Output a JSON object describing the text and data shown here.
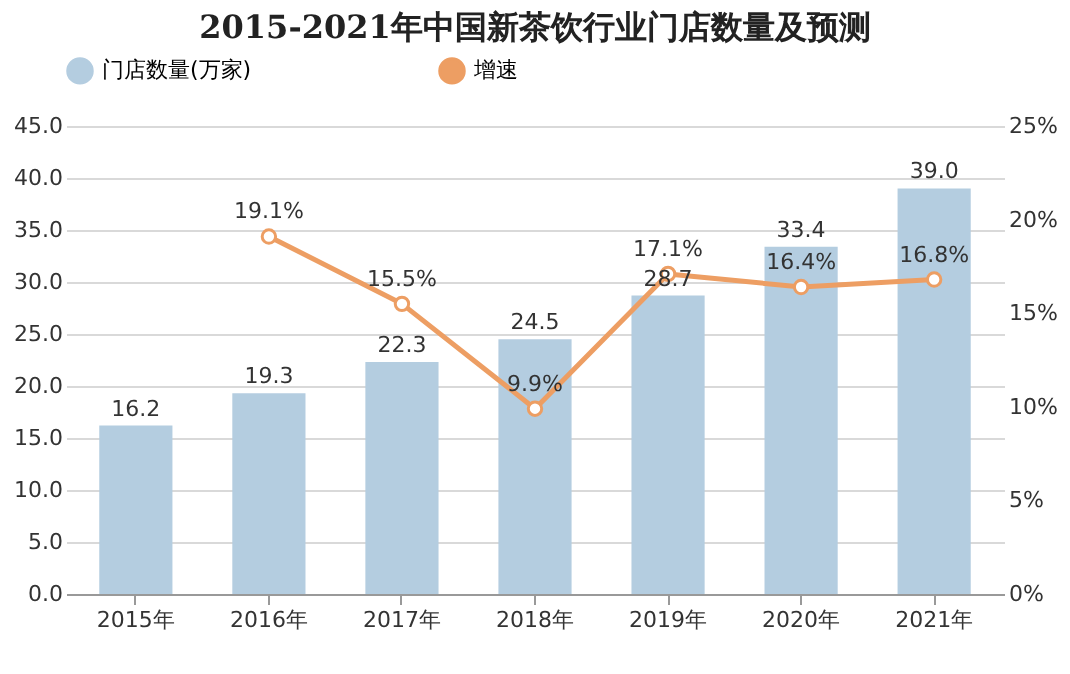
{
  "chart_data": {
    "type": "bar",
    "title": "2015-2021年中国新茶饮行业门店数量及预测",
    "categories": [
      "2015年",
      "2016年",
      "2017年",
      "2018年",
      "2019年",
      "2020年",
      "2021年"
    ],
    "series": [
      {
        "name": "门店数量(万家)",
        "color": "#b4cde0",
        "values": [
          16.2,
          19.3,
          22.3,
          24.5,
          28.7,
          33.4,
          39.0
        ],
        "value_labels": [
          "16.2",
          "19.3",
          "22.3",
          "24.5",
          "28.7",
          "33.4",
          "39.0"
        ]
      },
      {
        "name": "增速",
        "type": "line",
        "axis": "y2",
        "color": "#ed9e63",
        "values": [
          null,
          19.1,
          15.5,
          9.9,
          17.1,
          16.4,
          16.8
        ],
        "value_labels": [
          null,
          "19.1%",
          "15.5%",
          "9.9%",
          "17.1%",
          "16.4%",
          "16.8%"
        ]
      }
    ],
    "ylim": [
      0,
      45
    ],
    "yticks": [
      {
        "value": 0,
        "label": "0.0"
      },
      {
        "value": 5,
        "label": "5.0"
      },
      {
        "value": 10,
        "label": "10.0"
      },
      {
        "value": 15,
        "label": "15.0"
      },
      {
        "value": 20,
        "label": "20.0"
      },
      {
        "value": 25,
        "label": "25.0"
      },
      {
        "value": 30,
        "label": "30.0"
      },
      {
        "value": 35,
        "label": "35.0"
      },
      {
        "value": 40,
        "label": "40.0"
      },
      {
        "value": 45,
        "label": "45.0"
      }
    ],
    "y2lim": [
      0,
      25
    ],
    "y2ticks": [
      {
        "value": 0,
        "label": "0%"
      },
      {
        "value": 5,
        "label": "5%"
      },
      {
        "value": 10,
        "label": "10%"
      },
      {
        "value": 15,
        "label": "15%"
      },
      {
        "value": 20,
        "label": "20%"
      },
      {
        "value": 25,
        "label": "25%"
      }
    ],
    "grid": "y",
    "legend": "top",
    "marker": "circle",
    "line_style": "solid"
  }
}
